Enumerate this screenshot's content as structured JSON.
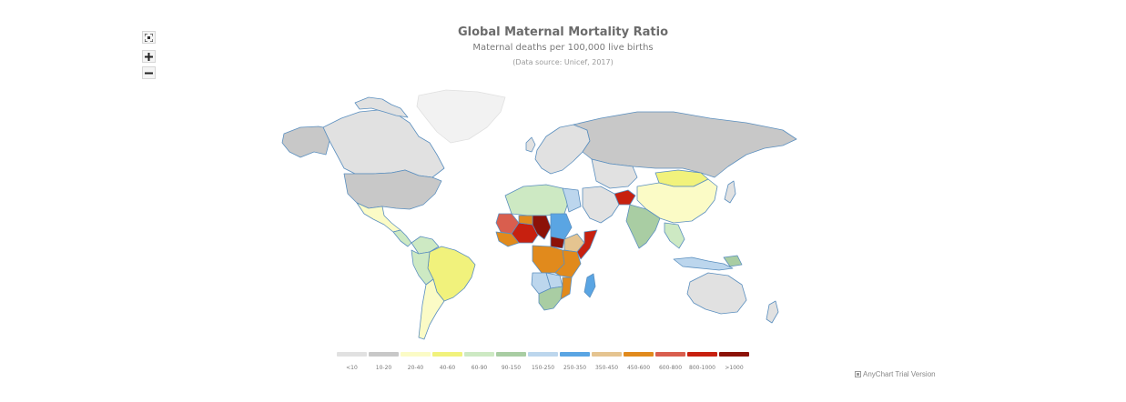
{
  "header": {
    "title": "Global Maternal Mortality Ratio",
    "subtitle": "Maternal deaths per 100,000 live births",
    "source": "(Data source: Unicef, 2017)"
  },
  "zoom_controls": {
    "items": [
      {
        "icon": "fit-screen-icon"
      },
      {
        "icon": "plus-icon"
      },
      {
        "icon": "minus-icon"
      }
    ]
  },
  "legend": {
    "items": [
      {
        "label": "<10",
        "color": "#e1e1e1"
      },
      {
        "label": "10-20",
        "color": "#c8c8c8"
      },
      {
        "label": "20-40",
        "color": "#fbfbc6"
      },
      {
        "label": "40-60",
        "color": "#f1f27c"
      },
      {
        "label": "60-90",
        "color": "#cde9c3"
      },
      {
        "label": "90-150",
        "color": "#a9cda3"
      },
      {
        "label": "150-250",
        "color": "#bcd6ed"
      },
      {
        "label": "250-350",
        "color": "#5aa5e3"
      },
      {
        "label": "350-450",
        "color": "#e5c490"
      },
      {
        "label": "450-600",
        "color": "#e18a1c"
      },
      {
        "label": "600-800",
        "color": "#d95e4e"
      },
      {
        "label": "800-1000",
        "color": "#c7200f"
      },
      {
        "label": ">1000",
        "color": "#8c1208"
      }
    ]
  },
  "credit": {
    "label": "AnyChart Trial Version"
  }
}
